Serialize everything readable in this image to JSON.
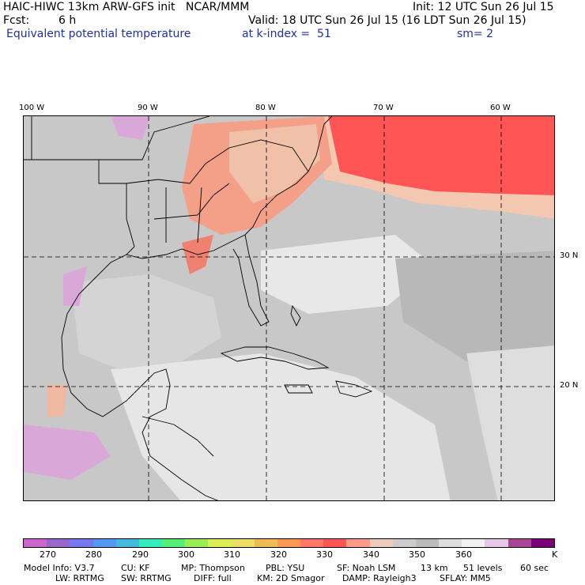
{
  "header": {
    "title": "HAIC-HIWC 13km ARW-GFS init   NCAR/MMM",
    "init": "Init: 12 UTC Sun 26 Jul 15",
    "fcst_label": "Fcst:",
    "fcst_value": "6 h",
    "valid": "Valid: 18 UTC Sun 26 Jul 15 (16 LDT Sun 26 Jul 15)",
    "field": "Equivalent potential temperature",
    "level": "at k-index =  51",
    "smoothing": "sm= 2"
  },
  "map": {
    "lon_labels": [
      "100 W",
      "90 W",
      "80 W",
      "70 W",
      "60 W"
    ],
    "lat_labels": [
      "30 N",
      "20 N"
    ]
  },
  "colorbar": {
    "colors": [
      "#cc66cc",
      "#9966cc",
      "#7777ee",
      "#5599ee",
      "#44bbdd",
      "#33eebb",
      "#55ee77",
      "#99ee55",
      "#ddee55",
      "#eedd66",
      "#eebb55",
      "#ff9955",
      "#ff7766",
      "#ff5555",
      "#ff9988",
      "#eeccbb",
      "#cccccc",
      "#bbbbbb",
      "#dddddd",
      "#f2f2f2",
      "#e8c8e8",
      "#aa4499",
      "#770077"
    ],
    "tick_labels": [
      "270",
      "280",
      "290",
      "300",
      "310",
      "320",
      "330",
      "340",
      "350",
      "360"
    ],
    "unit": "K"
  },
  "footer": {
    "line1": [
      "Model Info: V3.7",
      "CU: KF",
      "MP: Thompson",
      "PBL: YSU",
      "SF: Noah LSM",
      "13 km",
      "51 levels",
      "60 sec"
    ],
    "line2": [
      "LW: RRTMG",
      "SW: RRTMG",
      "DIFF: full",
      "KM: 2D Smagor",
      "DAMP: Rayleigh3",
      "SFLAY: MM5"
    ]
  }
}
